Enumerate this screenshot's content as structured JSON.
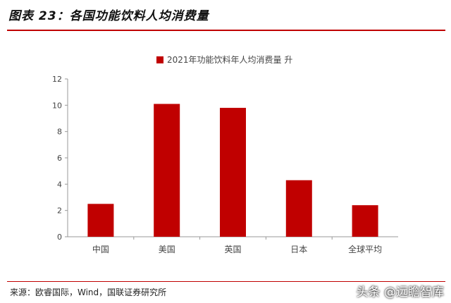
{
  "figure": {
    "title": "图表 23：各国功能饮料人均消费量",
    "source": "来源：欧睿国际，Wind，国联证券研究所",
    "watermark": "头条 @远瞻智库"
  },
  "colors": {
    "accent": "#c00000",
    "axis": "#999999",
    "text": "#444444"
  },
  "chart_data": {
    "type": "bar",
    "categories": [
      "中国",
      "美国",
      "英国",
      "日本",
      "全球平均"
    ],
    "series": [
      {
        "name": "2021年功能饮料年人均消费量 升",
        "values": [
          2.5,
          10.1,
          9.8,
          4.3,
          2.4
        ]
      }
    ],
    "yticks": [
      0,
      2,
      4,
      6,
      8,
      10,
      12
    ],
    "ylim": [
      0,
      12
    ],
    "legend_position": "top",
    "grid": false
  }
}
